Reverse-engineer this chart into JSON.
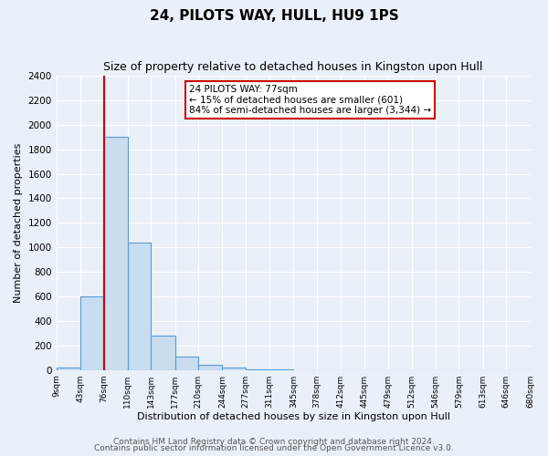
{
  "title": "24, PILOTS WAY, HULL, HU9 1PS",
  "subtitle": "Size of property relative to detached houses in Kingston upon Hull",
  "xlabel": "Distribution of detached houses by size in Kingston upon Hull",
  "ylabel": "Number of detached properties",
  "bin_edges": [
    9,
    43,
    76,
    110,
    143,
    177,
    210,
    244,
    277,
    311,
    345,
    378,
    412,
    445,
    479,
    512,
    546,
    579,
    613,
    646,
    680
  ],
  "bar_heights": [
    20,
    600,
    1900,
    1040,
    280,
    110,
    45,
    20,
    5,
    2,
    1,
    1,
    0,
    0,
    0,
    0,
    0,
    0,
    0,
    0
  ],
  "bar_color": "#c9ddf0",
  "bar_edge_color": "#5b9bd5",
  "red_line_x": 77,
  "annotation_title": "24 PILOTS WAY: 77sqm",
  "annotation_line1": "← 15% of detached houses are smaller (601)",
  "annotation_line2": "84% of semi-detached houses are larger (3,344) →",
  "annotation_box_color": "#ffffff",
  "annotation_box_edge": "#cc0000",
  "ylim": [
    0,
    2400
  ],
  "yticks": [
    0,
    200,
    400,
    600,
    800,
    1000,
    1200,
    1400,
    1600,
    1800,
    2000,
    2200,
    2400
  ],
  "footer_line1": "Contains HM Land Registry data © Crown copyright and database right 2024.",
  "footer_line2": "Contains public sector information licensed under the Open Government Licence v3.0.",
  "background_color": "#eaf0f8",
  "plot_bg_color": "#eaf0f8",
  "grid_color": "#ffffff",
  "title_fontsize": 11,
  "subtitle_fontsize": 9,
  "xlabel_fontsize": 8,
  "ylabel_fontsize": 8,
  "footer_fontsize": 6.5
}
